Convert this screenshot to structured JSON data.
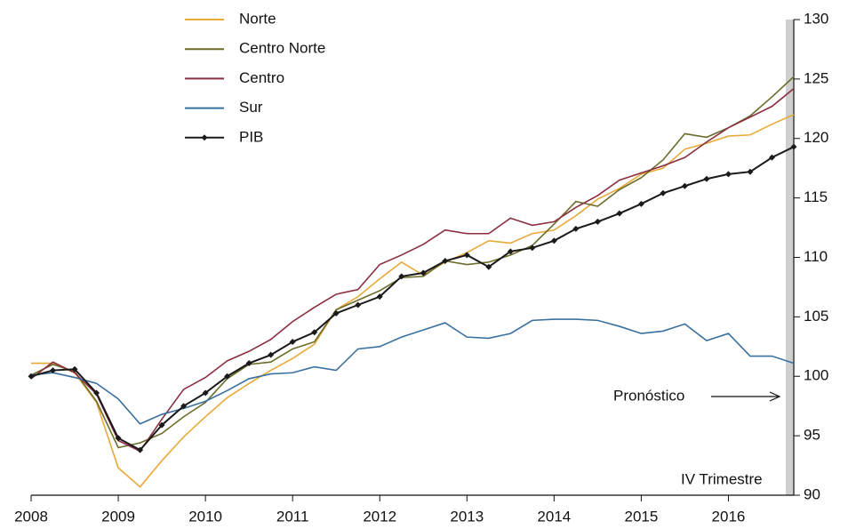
{
  "chart_data": {
    "type": "line",
    "x": [
      2008,
      2008.25,
      2008.5,
      2008.75,
      2009,
      2009.25,
      2009.5,
      2009.75,
      2010,
      2010.25,
      2010.5,
      2010.75,
      2011,
      2011.25,
      2011.5,
      2011.75,
      2012,
      2012.25,
      2012.5,
      2012.75,
      2013,
      2013.25,
      2013.5,
      2013.75,
      2014,
      2014.25,
      2014.5,
      2014.75,
      2015,
      2015.25,
      2015.5,
      2015.75,
      2016,
      2016.25,
      2016.5,
      2016.75
    ],
    "series": [
      {
        "name": "Norte",
        "color": "#e8a93a",
        "values": [
          101.1,
          101.1,
          100.3,
          97.8,
          92.3,
          90.7,
          92.9,
          94.9,
          96.6,
          98.2,
          99.4,
          100.5,
          101.5,
          102.7,
          105.6,
          106.7,
          108.2,
          109.6,
          108.5,
          109.6,
          110.4,
          111.4,
          111.2,
          112.0,
          112.3,
          113.5,
          114.9,
          115.8,
          117.0,
          117.5,
          119.1,
          119.6,
          120.2,
          120.3,
          121.2,
          122.0
        ]
      },
      {
        "name": "Centro Norte",
        "color": "#6b6b2a",
        "values": [
          100.1,
          101.0,
          100.4,
          97.9,
          94.0,
          94.4,
          95.2,
          96.6,
          97.8,
          99.8,
          101.0,
          101.2,
          102.3,
          102.9,
          105.6,
          106.4,
          107.2,
          108.3,
          108.4,
          109.7,
          109.4,
          109.6,
          110.2,
          111.0,
          112.8,
          114.7,
          114.3,
          115.7,
          116.7,
          118.2,
          120.4,
          120.1,
          120.9,
          121.9,
          123.5,
          125.2
        ]
      },
      {
        "name": "Centro",
        "color": "#8b2e40",
        "values": [
          99.8,
          101.2,
          100.3,
          98.5,
          94.6,
          93.7,
          96.4,
          98.9,
          99.9,
          101.3,
          102.1,
          103.1,
          104.6,
          105.8,
          106.9,
          107.3,
          109.4,
          110.2,
          111.1,
          112.3,
          112.0,
          112.0,
          113.3,
          112.7,
          113.0,
          114.2,
          115.2,
          116.5,
          117.1,
          117.7,
          118.4,
          119.7,
          120.9,
          121.8,
          122.7,
          124.2
        ]
      },
      {
        "name": "Sur",
        "color": "#3a70a0",
        "values": [
          100.1,
          100.3,
          99.9,
          99.4,
          98.1,
          96.0,
          96.8,
          97.3,
          97.9,
          98.8,
          99.8,
          100.2,
          100.3,
          100.8,
          100.5,
          102.3,
          102.5,
          103.3,
          103.9,
          104.5,
          103.3,
          103.2,
          103.6,
          104.7,
          104.8,
          104.8,
          104.7,
          104.2,
          103.6,
          103.8,
          104.4,
          103.0,
          103.6,
          101.7,
          101.7,
          101.1
        ]
      },
      {
        "name": "PIB",
        "color": "#1a1a1a",
        "markers": true,
        "values": [
          100.0,
          100.5,
          100.6,
          98.6,
          94.8,
          93.8,
          95.9,
          97.5,
          98.6,
          100.0,
          101.1,
          101.8,
          102.9,
          103.7,
          105.3,
          106.0,
          106.7,
          108.4,
          108.7,
          109.7,
          110.2,
          109.2,
          110.5,
          110.8,
          111.4,
          112.4,
          113.0,
          113.7,
          114.5,
          115.4,
          116.0,
          116.6,
          117.0,
          117.2,
          118.4,
          119.3
        ]
      }
    ],
    "xlim": [
      2008,
      2016.75
    ],
    "xticks": [
      2008,
      2009,
      2010,
      2011,
      2012,
      2013,
      2014,
      2015,
      2016
    ],
    "ylim": [
      90,
      130
    ],
    "yticks": [
      90,
      95,
      100,
      105,
      110,
      115,
      120,
      125,
      130
    ],
    "annotations": [
      "Pronóstico",
      "IV Trimestre"
    ]
  }
}
